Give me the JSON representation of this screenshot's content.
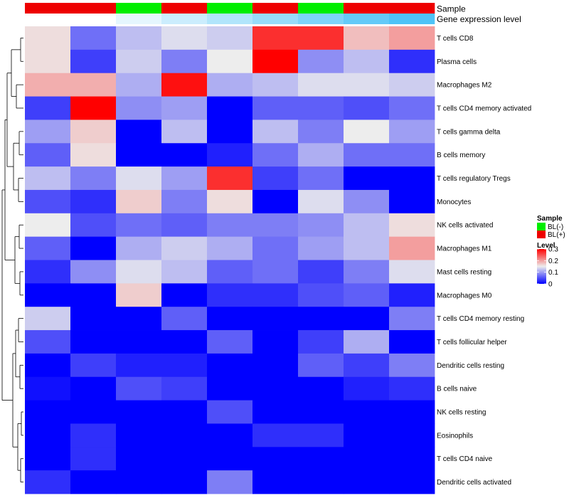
{
  "chart_data": {
    "type": "heatmap",
    "annotations": {
      "sample": {
        "label": "Sample",
        "values": [
          "BL(+)",
          "BL(+)",
          "BL(-)",
          "BL(+)",
          "BL(-)",
          "BL(+)",
          "BL(-)",
          "BL(+)",
          "BL(+)"
        ]
      },
      "gene_expression_level": {
        "label": "Gene expression level",
        "values": [
          0.0,
          0.0,
          0.05,
          0.1,
          0.15,
          0.2,
          0.25,
          0.3,
          0.34
        ]
      }
    },
    "rows": [
      "T cells CD8",
      "Plasma cells",
      "Macrophages M2",
      "T cells CD4 memory activated",
      "T cells gamma delta",
      "B cells memory",
      "T cells regulatory  Tregs",
      "Monocytes",
      "NK cells activated",
      "Macrophages M1",
      "Mast cells resting",
      "Macrophages M0",
      "T cells CD4 memory resting",
      "T cells follicular helper",
      "Dendritic cells resting",
      "B cells naive",
      "NK cells resting",
      "Eosinophils",
      "T cells CD4 naive",
      "Dendritic cells activated"
    ],
    "values": [
      [
        0.16,
        0.07,
        0.12,
        0.14,
        0.13,
        0.27,
        0.27,
        0.18,
        0.2
      ],
      [
        0.16,
        0.04,
        0.13,
        0.08,
        0.15,
        0.3,
        0.09,
        0.12,
        0.03
      ],
      [
        0.19,
        0.19,
        0.11,
        0.29,
        0.11,
        0.12,
        0.14,
        0.14,
        0.13
      ],
      [
        0.04,
        0.3,
        0.09,
        0.1,
        0.0,
        0.06,
        0.06,
        0.05,
        0.07
      ],
      [
        0.1,
        0.17,
        0.0,
        0.12,
        0.0,
        0.12,
        0.08,
        0.15,
        0.1
      ],
      [
        0.06,
        0.16,
        0.0,
        0.0,
        0.02,
        0.07,
        0.11,
        0.07,
        0.07
      ],
      [
        0.12,
        0.08,
        0.14,
        0.1,
        0.27,
        0.04,
        0.07,
        0.0,
        0.0
      ],
      [
        0.05,
        0.03,
        0.17,
        0.08,
        0.16,
        0.0,
        0.14,
        0.09,
        0.0
      ],
      [
        0.15,
        0.05,
        0.07,
        0.06,
        0.08,
        0.08,
        0.09,
        0.12,
        0.16
      ],
      [
        0.06,
        0.0,
        0.11,
        0.13,
        0.11,
        0.07,
        0.1,
        0.12,
        0.2
      ],
      [
        0.03,
        0.09,
        0.14,
        0.12,
        0.06,
        0.07,
        0.04,
        0.08,
        0.14
      ],
      [
        0.0,
        0.0,
        0.17,
        0.0,
        0.03,
        0.03,
        0.05,
        0.06,
        0.02
      ],
      [
        0.13,
        0.0,
        0.0,
        0.06,
        0.0,
        0.0,
        0.0,
        0.0,
        0.08
      ],
      [
        0.05,
        0.0,
        0.0,
        0.0,
        0.06,
        0.0,
        0.04,
        0.11,
        0.0
      ],
      [
        0.0,
        0.04,
        0.02,
        0.02,
        0.0,
        0.0,
        0.06,
        0.04,
        0.08
      ],
      [
        0.01,
        0.0,
        0.05,
        0.04,
        0.0,
        0.0,
        0.0,
        0.02,
        0.03
      ],
      [
        0.0,
        0.0,
        0.0,
        0.0,
        0.05,
        0.0,
        0.0,
        0.0,
        0.0
      ],
      [
        0.0,
        0.03,
        0.0,
        0.0,
        0.0,
        0.03,
        0.03,
        0.0,
        0.0
      ],
      [
        0.0,
        0.03,
        0.0,
        0.0,
        0.0,
        0.0,
        0.0,
        0.0,
        0.0
      ],
      [
        0.03,
        0.0,
        0.0,
        0.0,
        0.08,
        0.0,
        0.0,
        0.0,
        0.0
      ]
    ],
    "value_range": [
      0,
      0.3
    ],
    "legend": {
      "sample": {
        "title": "Sample",
        "items": [
          {
            "label": "BL(-)",
            "color": "#00ee00"
          },
          {
            "label": "BL(+)",
            "color": "#ee0000"
          }
        ]
      },
      "level": {
        "title": "Level",
        "ticks": [
          "0",
          "0.1",
          "0.2",
          "0.3"
        ],
        "tick_values": [
          0,
          0.1,
          0.2,
          0.3
        ]
      }
    }
  },
  "colors": {
    "low": "#0000ff",
    "mid": "#ededed",
    "high": "#ff0000",
    "bl_neg": "#00ee00",
    "bl_pos": "#ee0000",
    "gene_low": "#ffffff",
    "gene_high": "#4fc3f7"
  }
}
